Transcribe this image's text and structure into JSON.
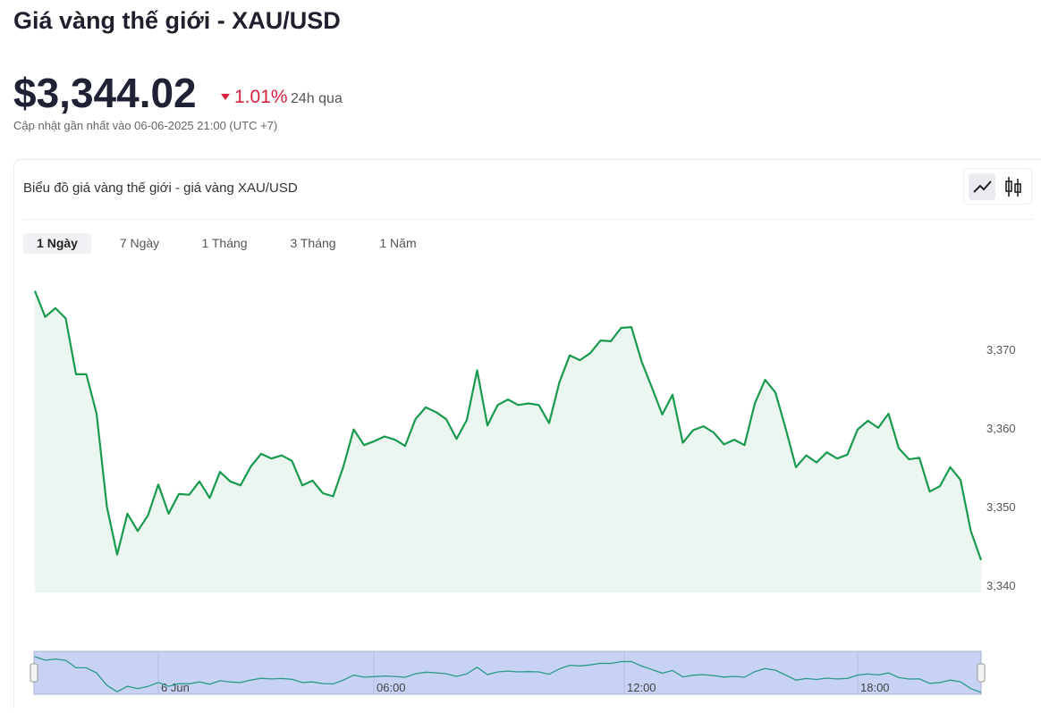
{
  "header": {
    "title": "Giá vàng thế giới - XAU/USD",
    "price": "$3,344.02",
    "change": "1.01%",
    "change_period": "24h qua",
    "updated": "Cập nhật gần nhất vào 06-06-2025 21:00 (UTC +7)"
  },
  "card": {
    "title": "Biểu đồ giá vàng thế giới - giá vàng XAU/USD",
    "tabs": [
      "1 Ngày",
      "7 Ngày",
      "1 Tháng",
      "3 Tháng",
      "1 Năm"
    ]
  },
  "chart_data": {
    "type": "area",
    "color": "#1a9a4f",
    "series": [
      {
        "name": "XAU/USD",
        "color": "#1a9a4f",
        "values": [
          3377.4,
          3374.1,
          3375.2,
          3373.9,
          3366.8,
          3366.8,
          3361.8,
          3350.0,
          3343.9,
          3349.1,
          3346.9,
          3348.9,
          3352.8,
          3349.1,
          3351.6,
          3351.5,
          3353.2,
          3351.1,
          3354.4,
          3353.2,
          3352.7,
          3355.1,
          3356.7,
          3356.1,
          3356.5,
          3355.8,
          3352.7,
          3353.3,
          3351.7,
          3351.3,
          3355.1,
          3359.8,
          3357.8,
          3358.3,
          3358.9,
          3358.5,
          3357.7,
          3361.1,
          3362.6,
          3362.0,
          3361.1,
          3358.6,
          3361.0,
          3367.3,
          3360.3,
          3362.9,
          3363.6,
          3362.9,
          3363.1,
          3362.9,
          3360.6,
          3365.8,
          3369.2,
          3368.6,
          3369.5,
          3371.1,
          3371.0,
          3372.7,
          3372.8,
          3368.4,
          3365.1,
          3361.7,
          3364.2,
          3358.1,
          3359.7,
          3360.2,
          3359.4,
          3357.9,
          3358.5,
          3357.8,
          3363.1,
          3366.1,
          3364.5,
          3359.9,
          3355.0,
          3356.5,
          3355.6,
          3356.9,
          3356.1,
          3356.6,
          3359.8,
          3360.9,
          3360.0,
          3361.8,
          3357.4,
          3356.0,
          3356.2,
          3351.9,
          3352.6,
          3355.0,
          3353.4,
          3346.9,
          3343.2
        ]
      }
    ],
    "ylim": [
      3339.1,
      3380.3
    ],
    "yticks": [
      {
        "value": 3340,
        "label": "3,340"
      },
      {
        "value": 3350,
        "label": "3,350"
      },
      {
        "value": 3360,
        "label": "3,360"
      },
      {
        "value": 3370,
        "label": "3,370"
      }
    ],
    "navigator_labels": [
      "6 Jun",
      "06:00",
      "12:00",
      "18:00"
    ]
  }
}
